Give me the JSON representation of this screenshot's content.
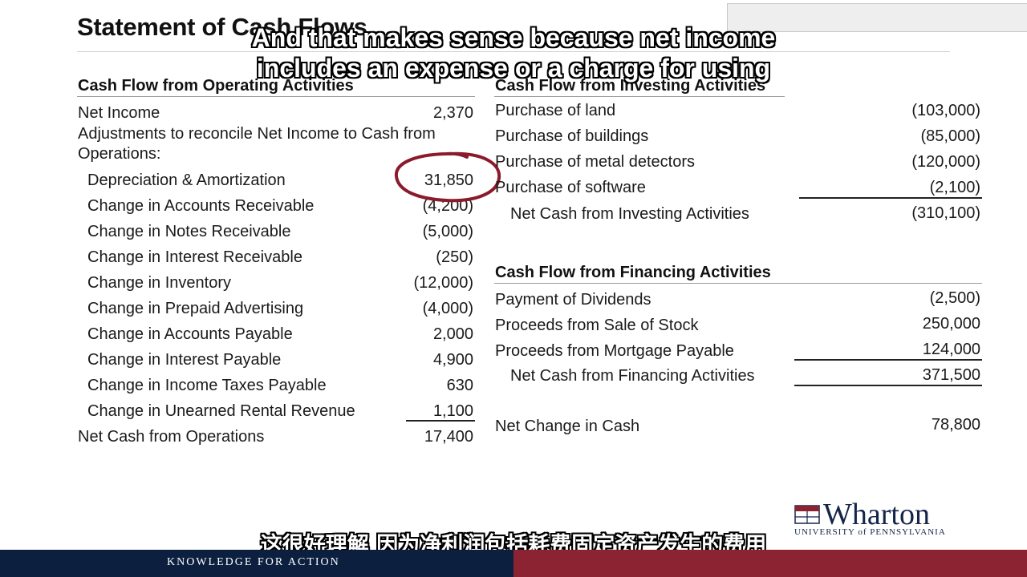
{
  "title": "Statement of Cash Flows",
  "subtitle_en": [
    "And that makes sense because net income",
    "includes an expense or a charge for using"
  ],
  "subtitle_cn": "这很好理解 因为净利润包括耗费固定资产发生的费用",
  "operating": {
    "heading": "Cash Flow from Operating Activities",
    "net_income_label": "Net Income",
    "net_income_value": "2,370",
    "adjust_label_1": "Adjustments to reconcile Net Income to Cash from",
    "adjust_label_2": "Operations:",
    "items": [
      {
        "label": "Depreciation & Amortization",
        "value": "31,850"
      },
      {
        "label": "Change in Accounts Receivable",
        "value": "(4,200)"
      },
      {
        "label": "Change in Notes Receivable",
        "value": "(5,000)"
      },
      {
        "label": "Change in Interest Receivable",
        "value": "(250)"
      },
      {
        "label": "Change in Inventory",
        "value": "(12,000)"
      },
      {
        "label": "Change in Prepaid Advertising",
        "value": "(4,000)"
      },
      {
        "label": "Change in Accounts Payable",
        "value": "2,000"
      },
      {
        "label": "Change in Interest Payable",
        "value": "4,900"
      },
      {
        "label": "Change in Income Taxes Payable",
        "value": "630"
      },
      {
        "label": "Change in Unearned Rental Revenue",
        "value": "1,100"
      }
    ],
    "total_label": "Net Cash from Operations",
    "total_value": "17,400"
  },
  "investing": {
    "heading": "Cash Flow from Investing Activities",
    "items": [
      {
        "label": "Purchase of land",
        "value": "(103,000)"
      },
      {
        "label": "Purchase of buildings",
        "value": "(85,000)"
      },
      {
        "label": "Purchase of metal detectors",
        "value": "(120,000)"
      },
      {
        "label": "Purchase of software",
        "value": "(2,100)"
      }
    ],
    "total_label": "Net Cash from Investing Activities",
    "total_value": "(310,100)"
  },
  "financing": {
    "heading": "Cash Flow from Financing Activities",
    "items": [
      {
        "label": "Payment of Dividends",
        "value": "(2,500)"
      },
      {
        "label": "Proceeds from Sale of Stock",
        "value": "250,000"
      },
      {
        "label": "Proceeds from Mortgage Payable",
        "value": "124,000"
      }
    ],
    "total_label": "Net Cash from Financing Activities",
    "total_value": "371,500"
  },
  "net_change": {
    "label": "Net Change in Cash",
    "value": "78,800"
  },
  "footer": {
    "tagline": "KNOWLEDGE FOR ACTION"
  },
  "logo": {
    "name": "Wharton",
    "sub": "UNIVERSITY of PENNSYLVANIA"
  },
  "colors": {
    "navy": "#0c1f3f",
    "maroon": "#8b2332",
    "circle": "#8b1a2b"
  }
}
